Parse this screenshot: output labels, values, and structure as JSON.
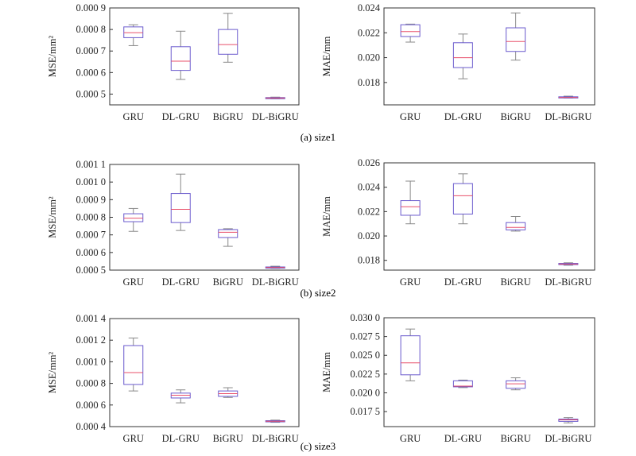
{
  "captions": [
    "(a)  size1",
    "(b)  size2",
    "(c)  size3"
  ],
  "colors": {
    "box": "#6a5acd",
    "median": "#e8506b",
    "whisker": "#888888",
    "axis": "#333333"
  },
  "chart_data": [
    {
      "type": "box",
      "panel": "a-left",
      "ylabel": "MSE/mm²",
      "categories": [
        "GRU",
        "DL-GRU",
        "BiGRU",
        "DL-BiGRU"
      ],
      "ylim": [
        0.00045,
        0.0009
      ],
      "yticks": [
        0.0005,
        0.0006,
        0.0007,
        0.0008,
        0.0009
      ],
      "ytick_labels": [
        "0.000 5",
        "0.000 6",
        "0.000 7",
        "0.000 8",
        "0.000 9"
      ],
      "boxes": [
        {
          "min": 0.000725,
          "q1": 0.000762,
          "median": 0.000785,
          "q3": 0.000812,
          "max": 0.000822
        },
        {
          "min": 0.000568,
          "q1": 0.00061,
          "median": 0.000653,
          "q3": 0.00072,
          "max": 0.000792
        },
        {
          "min": 0.000648,
          "q1": 0.000685,
          "median": 0.00073,
          "q3": 0.0008,
          "max": 0.000875
        },
        {
          "min": 0.000478,
          "q1": 0.00048,
          "median": 0.000482,
          "q3": 0.000484,
          "max": 0.000486
        }
      ]
    },
    {
      "type": "box",
      "panel": "a-right",
      "ylabel": "MAE/mm",
      "categories": [
        "GRU",
        "DL-GRU",
        "BiGRU",
        "DL-BiGRU"
      ],
      "ylim": [
        0.0162,
        0.024
      ],
      "yticks": [
        0.018,
        0.02,
        0.022,
        0.024
      ],
      "ytick_labels": [
        "0.018",
        "0.020",
        "0.022",
        "0.024"
      ],
      "boxes": [
        {
          "min": 0.02125,
          "q1": 0.0217,
          "median": 0.0221,
          "q3": 0.02265,
          "max": 0.0227
        },
        {
          "min": 0.0183,
          "q1": 0.0192,
          "median": 0.02,
          "q3": 0.0212,
          "max": 0.0219
        },
        {
          "min": 0.0198,
          "q1": 0.0205,
          "median": 0.0213,
          "q3": 0.0224,
          "max": 0.0236
        },
        {
          "min": 0.01675,
          "q1": 0.01678,
          "median": 0.0168,
          "q3": 0.01685,
          "max": 0.0169
        }
      ]
    },
    {
      "type": "box",
      "panel": "b-left",
      "ylabel": "MSE/mm²",
      "categories": [
        "GRU",
        "DL-GRU",
        "BiGRU",
        "DL-BiGRU"
      ],
      "ylim": [
        0.0005,
        0.0011
      ],
      "yticks": [
        0.0005,
        0.0006,
        0.0007,
        0.0008,
        0.0009,
        0.001,
        0.0011
      ],
      "ytick_labels": [
        "0.000 5",
        "0.000 6",
        "0.000 7",
        "0.000 8",
        "0.000 9",
        "0.001 0",
        "0.001 1"
      ],
      "boxes": [
        {
          "min": 0.00072,
          "q1": 0.000775,
          "median": 0.000795,
          "q3": 0.00082,
          "max": 0.00085
        },
        {
          "min": 0.000725,
          "q1": 0.00077,
          "median": 0.000845,
          "q3": 0.000935,
          "max": 0.001045
        },
        {
          "min": 0.000635,
          "q1": 0.000685,
          "median": 0.000715,
          "q3": 0.00073,
          "max": 0.000735
        },
        {
          "min": 0.00051,
          "q1": 0.000512,
          "median": 0.000515,
          "q3": 0.000518,
          "max": 0.000522
        }
      ]
    },
    {
      "type": "box",
      "panel": "b-right",
      "ylabel": "MAE/mm",
      "categories": [
        "GRU",
        "DL-GRU",
        "BiGRU",
        "DL-BiGRU"
      ],
      "ylim": [
        0.0172,
        0.026
      ],
      "yticks": [
        0.018,
        0.02,
        0.022,
        0.024,
        0.026
      ],
      "ytick_labels": [
        "0.018",
        "0.020",
        "0.022",
        "0.024",
        "0.026"
      ],
      "boxes": [
        {
          "min": 0.021,
          "q1": 0.0217,
          "median": 0.0224,
          "q3": 0.0229,
          "max": 0.0245
        },
        {
          "min": 0.021,
          "q1": 0.0218,
          "median": 0.0233,
          "q3": 0.0243,
          "max": 0.0251
        },
        {
          "min": 0.0204,
          "q1": 0.0205,
          "median": 0.0207,
          "q3": 0.0211,
          "max": 0.0216
        },
        {
          "min": 0.0176,
          "q1": 0.01765,
          "median": 0.0177,
          "q3": 0.01775,
          "max": 0.0178
        }
      ]
    },
    {
      "type": "box",
      "panel": "c-left",
      "ylabel": "MSE/mm²",
      "categories": [
        "GRU",
        "DL-GRU",
        "BiGRU",
        "DL-BiGRU"
      ],
      "ylim": [
        0.0004,
        0.0014
      ],
      "yticks": [
        0.0004,
        0.0006,
        0.0008,
        0.001,
        0.0012,
        0.0014
      ],
      "ytick_labels": [
        "0.000 4",
        "0.000 6",
        "0.000 8",
        "0.001 0",
        "0.001 2",
        "0.001 4"
      ],
      "boxes": [
        {
          "min": 0.00073,
          "q1": 0.00079,
          "median": 0.0009,
          "q3": 0.00115,
          "max": 0.00122
        },
        {
          "min": 0.00062,
          "q1": 0.000665,
          "median": 0.00069,
          "q3": 0.00071,
          "max": 0.00074
        },
        {
          "min": 0.00067,
          "q1": 0.00068,
          "median": 0.000705,
          "q3": 0.00073,
          "max": 0.00076
        },
        {
          "min": 0.00044,
          "q1": 0.000445,
          "median": 0.00045,
          "q3": 0.000455,
          "max": 0.00046
        }
      ]
    },
    {
      "type": "box",
      "panel": "c-right",
      "ylabel": "MAE/mm",
      "categories": [
        "GRU",
        "DL-GRU",
        "BiGRU",
        "DL-BiGRU"
      ],
      "ylim": [
        0.0155,
        0.03
      ],
      "yticks": [
        0.0175,
        0.02,
        0.0225,
        0.025,
        0.0275,
        0.03
      ],
      "ytick_labels": [
        "0.017 5",
        "0.020 0",
        "0.022 5",
        "0.025 0",
        "0.027 5",
        "0.030 0"
      ],
      "boxes": [
        {
          "min": 0.0216,
          "q1": 0.0224,
          "median": 0.024,
          "q3": 0.0276,
          "max": 0.0285
        },
        {
          "min": 0.0207,
          "q1": 0.0208,
          "median": 0.0209,
          "q3": 0.0216,
          "max": 0.0217
        },
        {
          "min": 0.0204,
          "q1": 0.0206,
          "median": 0.0212,
          "q3": 0.0216,
          "max": 0.022
        },
        {
          "min": 0.016,
          "q1": 0.0162,
          "median": 0.0164,
          "q3": 0.0165,
          "max": 0.0167
        }
      ]
    }
  ]
}
